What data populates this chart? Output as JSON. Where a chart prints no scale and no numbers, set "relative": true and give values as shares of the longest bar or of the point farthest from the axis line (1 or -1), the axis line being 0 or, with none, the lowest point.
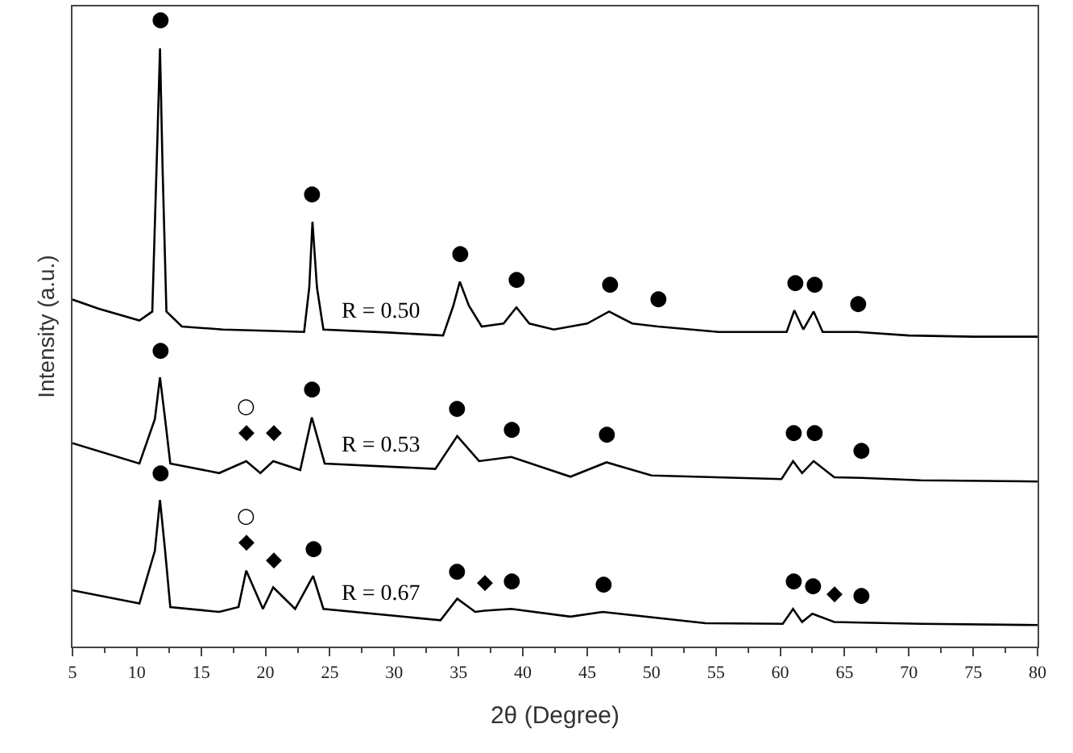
{
  "chart_data": {
    "type": "line",
    "relative": true,
    "xlabel": "2θ (Degree)",
    "ylabel": "Intensity (a.u.)",
    "xlim": [
      5,
      80
    ],
    "xticks": [
      5,
      10,
      15,
      20,
      25,
      30,
      35,
      40,
      45,
      50,
      55,
      60,
      65,
      70,
      75,
      80
    ],
    "series": [
      {
        "name": "R = 0.50",
        "color": "#000000",
        "x": [
          5.0,
          7.0,
          10.2,
          11.2,
          11.6,
          11.8,
          12.0,
          12.3,
          13.5,
          16.7,
          20.0,
          23.0,
          23.4,
          23.65,
          24.0,
          24.5,
          29.5,
          33.8,
          34.6,
          35.1,
          35.8,
          36.8,
          38.5,
          39.5,
          40.5,
          42.4,
          45.0,
          46.7,
          48.5,
          50.5,
          55.2,
          60.5,
          61.1,
          61.8,
          62.6,
          63.3,
          66.0,
          70.0,
          75.0,
          80.0
        ],
        "values": [
          0.58,
          0.565,
          0.545,
          0.56,
          0.85,
          1.0,
          0.8,
          0.56,
          0.535,
          0.53,
          0.528,
          0.526,
          0.6,
          0.71,
          0.6,
          0.53,
          0.525,
          0.52,
          0.57,
          0.61,
          0.57,
          0.535,
          0.54,
          0.567,
          0.54,
          0.53,
          0.54,
          0.56,
          0.54,
          0.535,
          0.526,
          0.526,
          0.562,
          0.53,
          0.56,
          0.526,
          0.526,
          0.52,
          0.518,
          0.518
        ]
      },
      {
        "name": "R = 0.53",
        "color": "#000000",
        "x": [
          5.0,
          10.2,
          11.4,
          11.8,
          12.2,
          12.6,
          16.4,
          18.5,
          19.6,
          20.6,
          22.7,
          23.6,
          24.6,
          33.2,
          34.9,
          36.6,
          39.1,
          43.7,
          46.5,
          50.0,
          60.1,
          61.0,
          61.7,
          62.6,
          64.2,
          66.3,
          70.9,
          80.0
        ],
        "values": [
          0.34,
          0.306,
          0.38,
          0.45,
          0.38,
          0.306,
          0.29,
          0.31,
          0.29,
          0.31,
          0.295,
          0.383,
          0.306,
          0.297,
          0.352,
          0.31,
          0.317,
          0.284,
          0.308,
          0.286,
          0.28,
          0.31,
          0.29,
          0.31,
          0.283,
          0.282,
          0.278,
          0.276
        ]
      },
      {
        "name": "R = 0.67",
        "color": "#000000",
        "x": [
          5.0,
          10.2,
          11.4,
          11.8,
          12.2,
          12.6,
          16.4,
          17.9,
          18.5,
          19.8,
          20.6,
          22.3,
          23.7,
          24.5,
          33.6,
          34.9,
          36.3,
          37.0,
          39.1,
          43.7,
          46.2,
          54.2,
          60.2,
          61.0,
          61.7,
          62.5,
          64.2,
          66.3,
          70.9,
          80.0
        ],
        "values": [
          0.094,
          0.072,
          0.16,
          0.245,
          0.16,
          0.066,
          0.058,
          0.066,
          0.127,
          0.063,
          0.099,
          0.063,
          0.118,
          0.063,
          0.044,
          0.08,
          0.058,
          0.06,
          0.063,
          0.05,
          0.058,
          0.039,
          0.038,
          0.063,
          0.041,
          0.055,
          0.041,
          0.04,
          0.038,
          0.036
        ]
      }
    ],
    "annotations": [
      {
        "text": "●",
        "x": 11.8,
        "y": 1.0
      },
      {
        "text": "●",
        "x": 23.65,
        "y": 0.71
      },
      {
        "text": "●",
        "x": 35.1,
        "y": 0.61
      },
      {
        "text": "●",
        "x": 39.5,
        "y": 0.567
      },
      {
        "text": "●",
        "x": 46.7,
        "y": 0.56
      },
      {
        "text": "●",
        "x": 50.5,
        "y": 0.535
      },
      {
        "text": "●",
        "x": 61.1,
        "y": 0.562
      },
      {
        "text": "●",
        "x": 62.6,
        "y": 0.56
      },
      {
        "text": "●",
        "x": 66.0,
        "y": 0.526
      },
      {
        "text": "●",
        "x": 11.8,
        "y": 0.45
      },
      {
        "text": "○",
        "x": 18.5,
        "y": 0.31
      },
      {
        "text": "◆",
        "x": 18.5,
        "y": 0.31
      },
      {
        "text": "◆",
        "x": 20.6,
        "y": 0.31
      },
      {
        "text": "●",
        "x": 23.6,
        "y": 0.383
      },
      {
        "text": "●",
        "x": 34.9,
        "y": 0.352
      },
      {
        "text": "●",
        "x": 39.1,
        "y": 0.317
      },
      {
        "text": "●",
        "x": 46.5,
        "y": 0.308
      },
      {
        "text": "●",
        "x": 61.0,
        "y": 0.31
      },
      {
        "text": "●",
        "x": 62.6,
        "y": 0.31
      },
      {
        "text": "●",
        "x": 66.3,
        "y": 0.282
      },
      {
        "text": "●",
        "x": 11.8,
        "y": 0.245
      },
      {
        "text": "○",
        "x": 18.5,
        "y": 0.127
      },
      {
        "text": "◆",
        "x": 18.5,
        "y": 0.127
      },
      {
        "text": "◆",
        "x": 20.6,
        "y": 0.099
      },
      {
        "text": "●",
        "x": 23.7,
        "y": 0.118
      },
      {
        "text": "●",
        "x": 34.9,
        "y": 0.08
      },
      {
        "text": "◆",
        "x": 37.0,
        "y": 0.06
      },
      {
        "text": "●",
        "x": 39.1,
        "y": 0.063
      },
      {
        "text": "●",
        "x": 46.2,
        "y": 0.058
      },
      {
        "text": "●",
        "x": 61.0,
        "y": 0.063
      },
      {
        "text": "●",
        "x": 62.5,
        "y": 0.055
      },
      {
        "text": "◆",
        "x": 64.2,
        "y": 0.041
      },
      {
        "text": "●",
        "x": 66.3,
        "y": 0.04
      }
    ]
  }
}
